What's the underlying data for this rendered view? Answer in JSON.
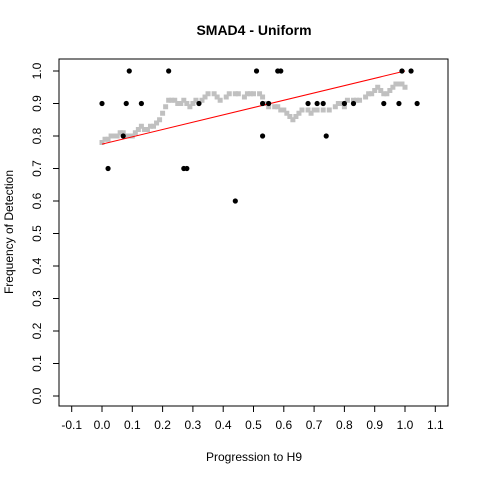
{
  "chart_data": {
    "type": "scatter",
    "title": "SMAD4 - Uniform",
    "xlabel": "Progression to H9",
    "ylabel": "Frequency of Detection",
    "xlim": [
      -0.1,
      1.1
    ],
    "ylim": [
      0.0,
      1.0
    ],
    "x_ticks": [
      "-0.1",
      "0.0",
      "0.1",
      "0.2",
      "0.3",
      "0.4",
      "0.5",
      "0.6",
      "0.7",
      "0.8",
      "0.9",
      "1.0",
      "1.1"
    ],
    "y_ticks": [
      "0.0",
      "0.1",
      "0.2",
      "0.3",
      "0.4",
      "0.5",
      "0.6",
      "0.7",
      "0.8",
      "0.9",
      "1.0"
    ],
    "grid": false,
    "series": [
      {
        "kind": "points",
        "color": "#000000",
        "points": [
          [
            0.0,
            0.9
          ],
          [
            0.02,
            0.7
          ],
          [
            0.07,
            0.8
          ],
          [
            0.08,
            0.9
          ],
          [
            0.09,
            1.0
          ],
          [
            0.13,
            0.9
          ],
          [
            0.22,
            1.0
          ],
          [
            0.27,
            0.7
          ],
          [
            0.28,
            0.7
          ],
          [
            0.32,
            0.9
          ],
          [
            0.44,
            0.6
          ],
          [
            0.51,
            1.0
          ],
          [
            0.53,
            0.9
          ],
          [
            0.53,
            0.8
          ],
          [
            0.55,
            0.9
          ],
          [
            0.58,
            1.0
          ],
          [
            0.59,
            1.0
          ],
          [
            0.68,
            0.9
          ],
          [
            0.71,
            0.9
          ],
          [
            0.73,
            0.9
          ],
          [
            0.74,
            0.8
          ],
          [
            0.8,
            0.9
          ],
          [
            0.83,
            0.9
          ],
          [
            0.93,
            0.9
          ],
          [
            0.98,
            0.9
          ],
          [
            0.99,
            1.0
          ],
          [
            1.02,
            1.0
          ],
          [
            1.04,
            0.9
          ]
        ]
      },
      {
        "kind": "smooth",
        "color": "#c0c0c0",
        "points": [
          [
            0.0,
            0.78
          ],
          [
            0.01,
            0.79
          ],
          [
            0.02,
            0.79
          ],
          [
            0.03,
            0.8
          ],
          [
            0.04,
            0.8
          ],
          [
            0.05,
            0.8
          ],
          [
            0.06,
            0.81
          ],
          [
            0.07,
            0.81
          ],
          [
            0.08,
            0.8
          ],
          [
            0.09,
            0.8
          ],
          [
            0.1,
            0.8
          ],
          [
            0.11,
            0.81
          ],
          [
            0.12,
            0.82
          ],
          [
            0.13,
            0.83
          ],
          [
            0.14,
            0.82
          ],
          [
            0.15,
            0.82
          ],
          [
            0.16,
            0.83
          ],
          [
            0.17,
            0.83
          ],
          [
            0.18,
            0.84
          ],
          [
            0.19,
            0.85
          ],
          [
            0.2,
            0.87
          ],
          [
            0.21,
            0.89
          ],
          [
            0.22,
            0.91
          ],
          [
            0.23,
            0.91
          ],
          [
            0.24,
            0.91
          ],
          [
            0.25,
            0.9
          ],
          [
            0.26,
            0.9
          ],
          [
            0.27,
            0.91
          ],
          [
            0.28,
            0.9
          ],
          [
            0.29,
            0.89
          ],
          [
            0.3,
            0.9
          ],
          [
            0.31,
            0.91
          ],
          [
            0.33,
            0.91
          ],
          [
            0.34,
            0.92
          ],
          [
            0.35,
            0.93
          ],
          [
            0.37,
            0.93
          ],
          [
            0.38,
            0.92
          ],
          [
            0.39,
            0.91
          ],
          [
            0.41,
            0.92
          ],
          [
            0.42,
            0.93
          ],
          [
            0.44,
            0.93
          ],
          [
            0.45,
            0.93
          ],
          [
            0.47,
            0.92
          ],
          [
            0.48,
            0.93
          ],
          [
            0.49,
            0.93
          ],
          [
            0.5,
            0.93
          ],
          [
            0.52,
            0.93
          ],
          [
            0.53,
            0.92
          ],
          [
            0.54,
            0.9
          ],
          [
            0.55,
            0.89
          ],
          [
            0.57,
            0.89
          ],
          [
            0.58,
            0.89
          ],
          [
            0.59,
            0.88
          ],
          [
            0.6,
            0.88
          ],
          [
            0.61,
            0.87
          ],
          [
            0.62,
            0.86
          ],
          [
            0.63,
            0.85
          ],
          [
            0.64,
            0.86
          ],
          [
            0.65,
            0.87
          ],
          [
            0.66,
            0.88
          ],
          [
            0.68,
            0.88
          ],
          [
            0.69,
            0.87
          ],
          [
            0.7,
            0.88
          ],
          [
            0.71,
            0.88
          ],
          [
            0.73,
            0.88
          ],
          [
            0.75,
            0.88
          ],
          [
            0.77,
            0.89
          ],
          [
            0.78,
            0.9
          ],
          [
            0.79,
            0.9
          ],
          [
            0.8,
            0.89
          ],
          [
            0.81,
            0.91
          ],
          [
            0.83,
            0.91
          ],
          [
            0.84,
            0.91
          ],
          [
            0.85,
            0.91
          ],
          [
            0.87,
            0.92
          ],
          [
            0.88,
            0.93
          ],
          [
            0.89,
            0.93
          ],
          [
            0.9,
            0.94
          ],
          [
            0.91,
            0.95
          ],
          [
            0.92,
            0.94
          ],
          [
            0.93,
            0.93
          ],
          [
            0.94,
            0.93
          ],
          [
            0.95,
            0.94
          ],
          [
            0.96,
            0.95
          ],
          [
            0.97,
            0.96
          ],
          [
            0.98,
            0.96
          ],
          [
            0.99,
            0.96
          ],
          [
            1.0,
            0.95
          ]
        ]
      },
      {
        "kind": "line",
        "color": "#ff0000",
        "points": [
          [
            0.0,
            0.775
          ],
          [
            1.0,
            1.0
          ]
        ]
      }
    ]
  }
}
